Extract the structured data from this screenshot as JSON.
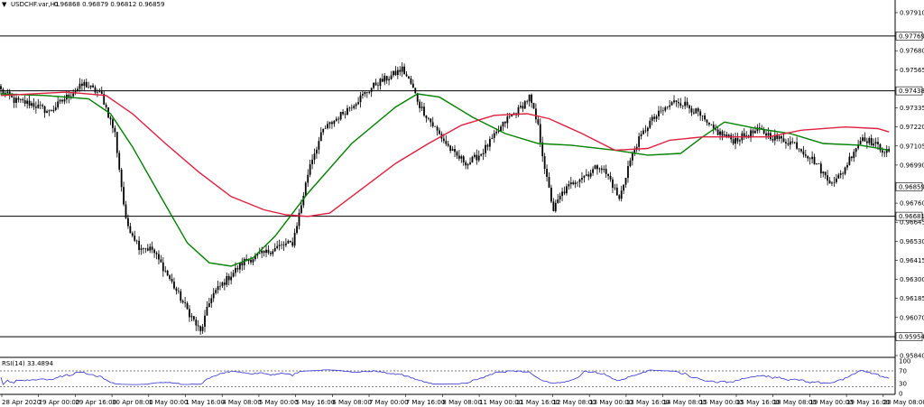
{
  "chart_data": {
    "type": "candlestick",
    "header": {
      "arrow": "▼",
      "symbol": "USDCHF.var,H1",
      "ohlc": "0.96868 0.96879 0.96812 0.96859"
    },
    "price_axis": {
      "ylim": [
        0.9584,
        0.9798
      ],
      "ticks": [
        0.9791,
        0.9768,
        0.97565,
        0.97335,
        0.9722,
        0.97105,
        0.9699,
        0.9676,
        0.96645,
        0.9653,
        0.96415,
        0.963,
        0.96185,
        0.9607,
        0.9584
      ],
      "tick_labels": [
        "0.97910",
        "0.97680",
        "0.97565",
        "0.97335",
        "0.97220",
        "0.97105",
        "0.96990",
        "0.96760",
        "0.96645",
        "0.96530",
        "0.96415",
        "0.96300",
        "0.96185",
        "0.96070",
        "0.95840"
      ]
    },
    "horizontal_levels": [
      {
        "value": 0.97769,
        "label": "0.97769"
      },
      {
        "value": 0.97438,
        "label": "0.97438"
      },
      {
        "value": 0.96681,
        "label": "0.96681"
      },
      {
        "value": 0.95954,
        "label": "0.95954"
      }
    ],
    "current_price": {
      "value": 0.96859,
      "label": "0.96859"
    },
    "x_labels": [
      "28 Apr 2020",
      "29 Apr 00:00",
      "29 Apr 16:00",
      "30 Apr 08:00",
      "1 May 00:00",
      "1 May 16:00",
      "4 May 08:00",
      "5 May 00:00",
      "5 May 16:00",
      "6 May 08:00",
      "7 May 00:00",
      "7 May 16:00",
      "8 May 08:00",
      "11 May 00:00",
      "11 May 16:00",
      "12 May 08:00",
      "13 May 00:00",
      "13 May 16:00",
      "14 May 08:00",
      "15 May 00:00",
      "15 May 16:00",
      "18 May 08:00",
      "19 May 00:00",
      "19 May 16:00",
      "20 May 08:00"
    ],
    "anchors": [
      [
        0,
        0.9744
      ],
      [
        6,
        0.9738
      ],
      [
        14,
        0.9736
      ],
      [
        22,
        0.9731
      ],
      [
        30,
        0.974
      ],
      [
        38,
        0.9748
      ],
      [
        46,
        0.9741
      ],
      [
        52,
        0.9718
      ],
      [
        57,
        0.9665
      ],
      [
        63,
        0.965
      ],
      [
        69,
        0.9648
      ],
      [
        75,
        0.9635
      ],
      [
        83,
        0.9616
      ],
      [
        88,
        0.9605
      ],
      [
        91,
        0.9598
      ],
      [
        96,
        0.962
      ],
      [
        103,
        0.963
      ],
      [
        111,
        0.9641
      ],
      [
        119,
        0.9645
      ],
      [
        127,
        0.965
      ],
      [
        133,
        0.9652
      ],
      [
        137,
        0.9675
      ],
      [
        141,
        0.97
      ],
      [
        147,
        0.972
      ],
      [
        153,
        0.9727
      ],
      [
        159,
        0.9734
      ],
      [
        165,
        0.9741
      ],
      [
        171,
        0.9748
      ],
      [
        177,
        0.9752
      ],
      [
        183,
        0.9757
      ],
      [
        187,
        0.9748
      ],
      [
        191,
        0.9735
      ],
      [
        197,
        0.9723
      ],
      [
        203,
        0.9712
      ],
      [
        207,
        0.9705
      ],
      [
        213,
        0.97
      ],
      [
        219,
        0.9706
      ],
      [
        225,
        0.9716
      ],
      [
        231,
        0.9727
      ],
      [
        236,
        0.9732
      ],
      [
        241,
        0.974
      ],
      [
        245,
        0.9722
      ],
      [
        249,
        0.969
      ],
      [
        252,
        0.9672
      ],
      [
        256,
        0.9682
      ],
      [
        262,
        0.969
      ],
      [
        268,
        0.9694
      ],
      [
        273,
        0.9699
      ],
      [
        278,
        0.969
      ],
      [
        282,
        0.9678
      ],
      [
        286,
        0.9698
      ],
      [
        290,
        0.9712
      ],
      [
        296,
        0.9725
      ],
      [
        302,
        0.9732
      ],
      [
        308,
        0.9738
      ],
      [
        313,
        0.9735
      ],
      [
        318,
        0.973
      ],
      [
        323,
        0.9722
      ],
      [
        328,
        0.9718
      ],
      [
        334,
        0.9714
      ],
      [
        340,
        0.9717
      ],
      [
        346,
        0.972
      ],
      [
        352,
        0.9716
      ],
      [
        357,
        0.9714
      ],
      [
        362,
        0.9712
      ],
      [
        367,
        0.9706
      ],
      [
        372,
        0.97
      ],
      [
        377,
        0.969
      ],
      [
        381,
        0.969
      ],
      [
        384,
        0.9695
      ],
      [
        389,
        0.9708
      ],
      [
        393,
        0.9716
      ],
      [
        399,
        0.9711
      ],
      [
        405,
        0.9706
      ]
    ],
    "series": [
      {
        "name": "",
        "color": "#008000",
        "points": [
          [
            0,
            0.9742
          ],
          [
            20,
            0.9741
          ],
          [
            40,
            0.9739
          ],
          [
            50,
            0.973
          ],
          [
            60,
            0.971
          ],
          [
            72,
            0.9682
          ],
          [
            85,
            0.9652
          ],
          [
            95,
            0.964
          ],
          [
            105,
            0.9638
          ],
          [
            115,
            0.9643
          ],
          [
            125,
            0.9656
          ],
          [
            140,
            0.9682
          ],
          [
            160,
            0.9712
          ],
          [
            180,
            0.9734
          ],
          [
            190,
            0.9742
          ],
          [
            200,
            0.974
          ],
          [
            215,
            0.9728
          ],
          [
            230,
            0.9718
          ],
          [
            245,
            0.9712
          ],
          [
            260,
            0.9711
          ],
          [
            280,
            0.9708
          ],
          [
            295,
            0.9705
          ],
          [
            310,
            0.9706
          ],
          [
            320,
            0.9716
          ],
          [
            330,
            0.9725
          ],
          [
            345,
            0.9721
          ],
          [
            360,
            0.9718
          ],
          [
            375,
            0.9712
          ],
          [
            392,
            0.9711
          ],
          [
            405,
            0.9708
          ]
        ]
      },
      {
        "name": "",
        "color": "#e02040",
        "points": [
          [
            0,
            0.9741
          ],
          [
            30,
            0.9743
          ],
          [
            48,
            0.9741
          ],
          [
            60,
            0.973
          ],
          [
            75,
            0.9712
          ],
          [
            90,
            0.9695
          ],
          [
            105,
            0.968
          ],
          [
            120,
            0.9672
          ],
          [
            130,
            0.9669
          ],
          [
            140,
            0.9668
          ],
          [
            150,
            0.967
          ],
          [
            165,
            0.9685
          ],
          [
            180,
            0.97
          ],
          [
            195,
            0.9712
          ],
          [
            210,
            0.9723
          ],
          [
            225,
            0.9729
          ],
          [
            240,
            0.973
          ],
          [
            250,
            0.9727
          ],
          [
            265,
            0.9718
          ],
          [
            280,
            0.9708
          ],
          [
            295,
            0.9709
          ],
          [
            305,
            0.9714
          ],
          [
            320,
            0.9716
          ],
          [
            335,
            0.9716
          ],
          [
            350,
            0.9716
          ],
          [
            365,
            0.972
          ],
          [
            385,
            0.9722
          ],
          [
            400,
            0.9721
          ],
          [
            405,
            0.9719
          ]
        ]
      }
    ],
    "indicator": {
      "label": "RSI(14) 33.4894",
      "ylim": [
        0,
        100
      ],
      "ticks": [
        100,
        70,
        30,
        0
      ],
      "tick_labels": [
        "100",
        "70",
        "30",
        "0"
      ]
    }
  }
}
